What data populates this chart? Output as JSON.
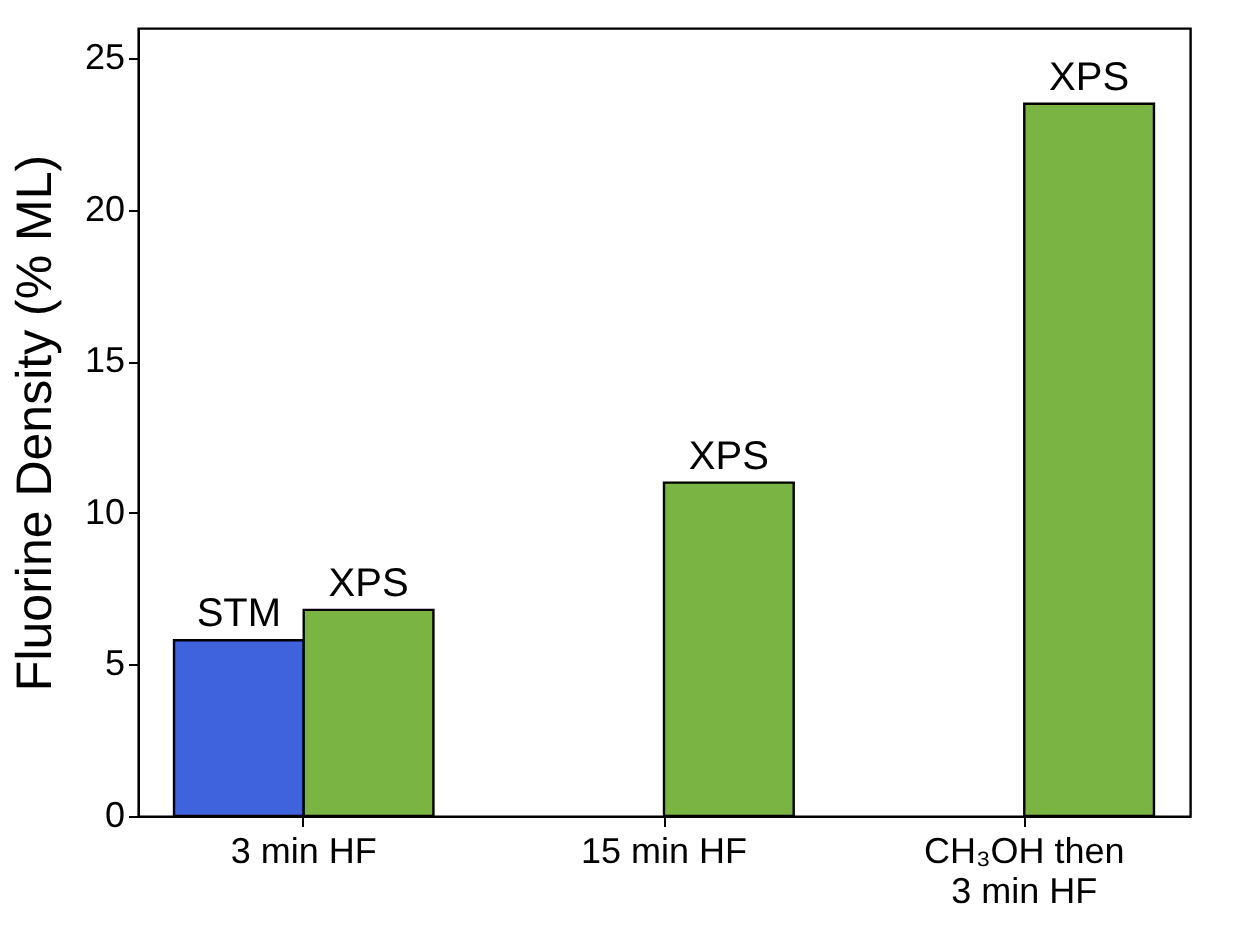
{
  "chart_data": {
    "type": "bar",
    "ylabel": "Fluorine Density (% ML)",
    "categories": [
      "3 min HF",
      "15 min HF",
      "CH₃OH then 3 min HF"
    ],
    "series": [
      {
        "name": "STM",
        "color": "#3f63dc",
        "values": [
          5.8,
          null,
          null
        ]
      },
      {
        "name": "XPS",
        "color": "#7ab443",
        "values": [
          6.8,
          11,
          23.5
        ]
      }
    ],
    "ylim": [
      0,
      26
    ],
    "yticks": [
      0,
      5,
      10,
      15,
      20,
      25
    ],
    "grid": false,
    "legend": false
  }
}
